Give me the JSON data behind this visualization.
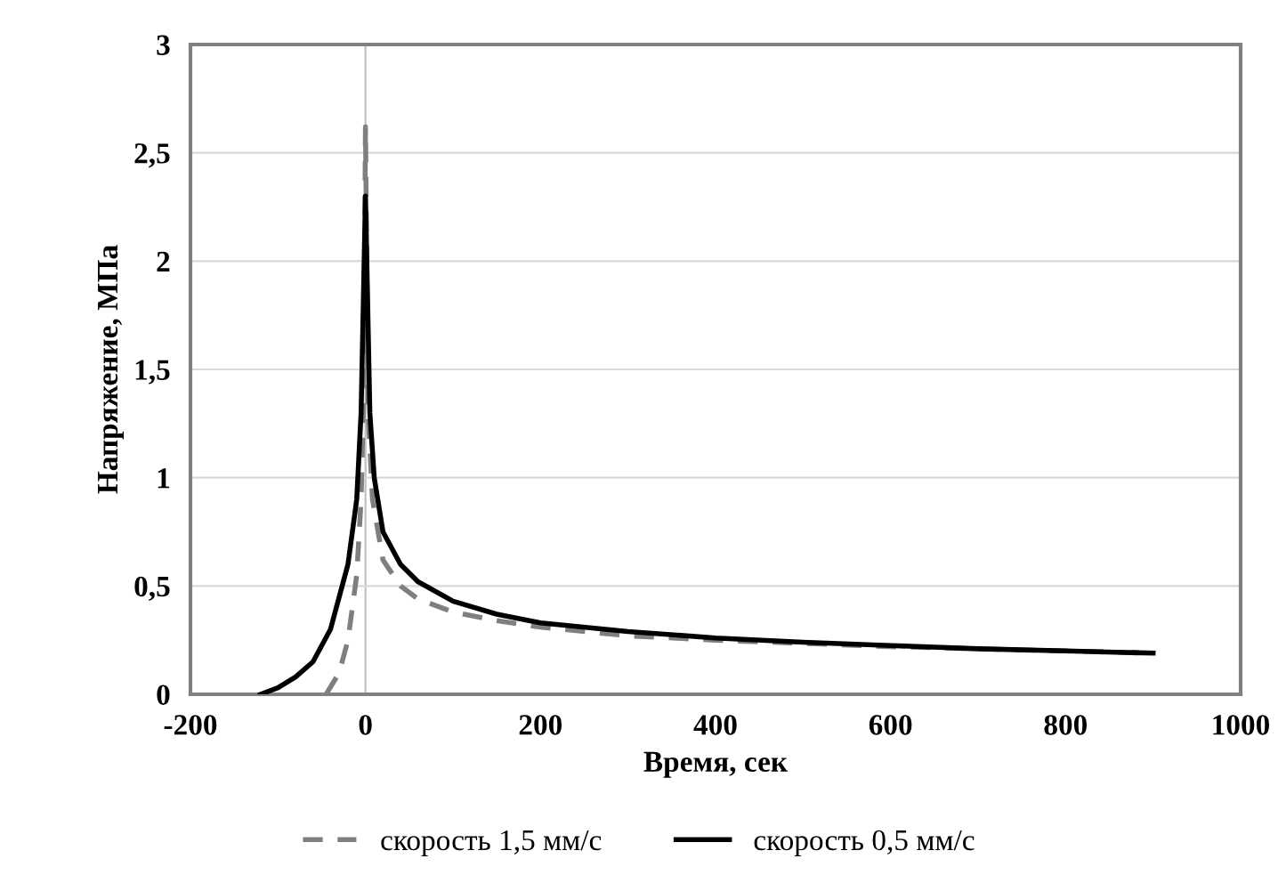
{
  "chart_data": {
    "type": "line",
    "xlabel": "Время, сек",
    "ylabel": "Напряжение, МПа",
    "xlim": [
      -200,
      1000
    ],
    "xticks": [
      -200,
      0,
      200,
      400,
      600,
      800,
      1000
    ],
    "ylim": [
      0,
      3
    ],
    "yticks": [
      0,
      {
        "value": 0.5,
        "label": "0,5"
      },
      1,
      {
        "value": 1.5,
        "label": "1,5"
      },
      2,
      {
        "value": 2.5,
        "label": "2,5"
      },
      3
    ],
    "grid": "y",
    "legend": "bottom",
    "marker": "none",
    "ref_lines": [
      {
        "axis": "x",
        "value": 0,
        "label": null,
        "color": "#c0c0c0"
      }
    ],
    "series": [
      {
        "name": "скорость 1,5 мм/с",
        "color": "#7f7f7f",
        "line_style": "dashed",
        "x": [
          -45,
          -30,
          -20,
          -10,
          -5,
          -2,
          0,
          3,
          8,
          20,
          40,
          60,
          100,
          150,
          200,
          300,
          400,
          500,
          600,
          700,
          800,
          900
        ],
        "values": [
          0,
          0.1,
          0.25,
          0.55,
          0.9,
          1.4,
          2.62,
          1.3,
          0.9,
          0.62,
          0.5,
          0.44,
          0.38,
          0.34,
          0.31,
          0.27,
          0.25,
          0.235,
          0.22,
          0.21,
          0.2,
          0.19
        ]
      },
      {
        "name": "скорость 0,5 мм/с",
        "color": "#000000",
        "line_style": "solid",
        "x": [
          -120,
          -100,
          -80,
          -60,
          -40,
          -20,
          -10,
          -5,
          0,
          5,
          10,
          20,
          40,
          60,
          100,
          150,
          200,
          300,
          400,
          500,
          600,
          700,
          800,
          900
        ],
        "values": [
          0,
          0.03,
          0.08,
          0.15,
          0.3,
          0.6,
          0.9,
          1.3,
          2.3,
          1.3,
          1.0,
          0.75,
          0.6,
          0.52,
          0.43,
          0.37,
          0.33,
          0.29,
          0.26,
          0.24,
          0.225,
          0.21,
          0.2,
          0.19
        ]
      }
    ]
  }
}
